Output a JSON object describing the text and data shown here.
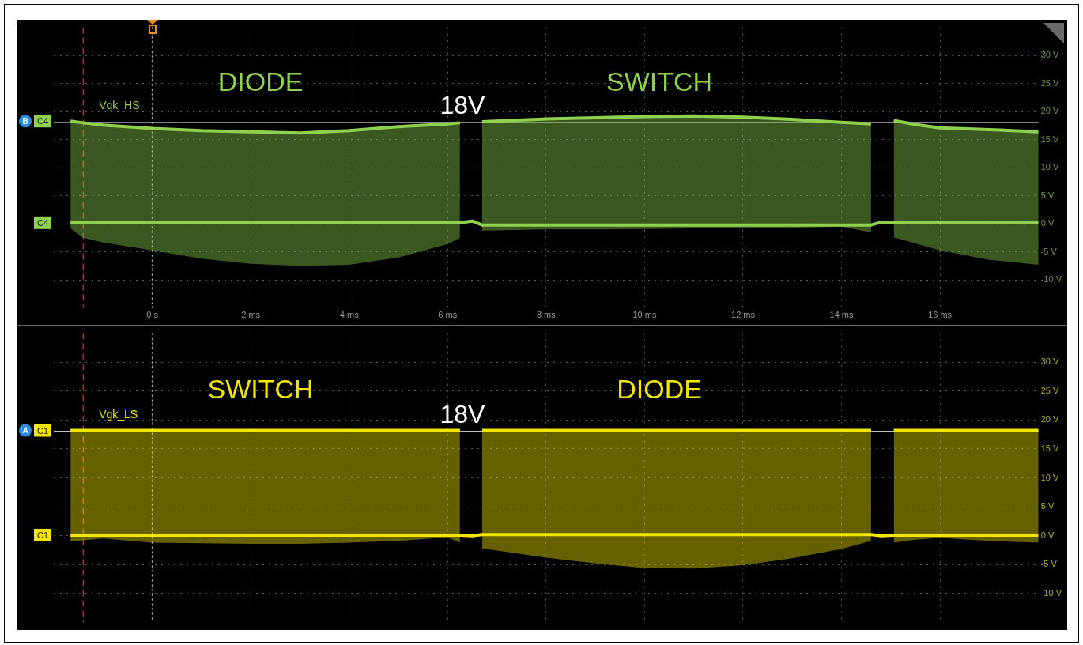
{
  "chart_data": [
    {
      "type": "line",
      "x": [
        -1.66,
        -1.4,
        -1,
        0,
        1,
        2,
        3,
        4,
        5,
        6,
        6.25,
        6.5,
        6.7,
        8,
        9,
        10,
        11,
        12,
        13,
        14,
        14.6,
        14.8,
        15.06,
        15.5,
        16,
        17,
        18
      ],
      "series": [
        {
          "name": "Vgk_HS",
          "color": "#8fd14f",
          "values": [
            18.3,
            18.0,
            17.6,
            17.0,
            16.6,
            16.4,
            16.2,
            16.6,
            17.3,
            17.8,
            18.0,
            null,
            18.2,
            18.7,
            18.9,
            19.1,
            19.2,
            19.0,
            18.6,
            18.1,
            17.8,
            null,
            18.4,
            17.7,
            17.1,
            16.8,
            16.4
          ],
          "upper": [
            18.3,
            18.0,
            17.6,
            17.0,
            16.6,
            16.4,
            16.2,
            16.6,
            17.3,
            17.8,
            18.0,
            null,
            18.2,
            18.7,
            18.9,
            19.1,
            19.2,
            19.0,
            18.6,
            18.1,
            17.8,
            null,
            18.4,
            17.7,
            17.1,
            16.8,
            16.4
          ],
          "lower": [
            -0.8,
            -2.5,
            -3.3,
            -4.7,
            -6.2,
            -7.1,
            -7.5,
            -7.3,
            -6.0,
            -3.6,
            -2.5,
            null,
            -1.2,
            -1.0,
            -1.0,
            -0.9,
            -0.8,
            -0.8,
            -0.7,
            -0.5,
            -1.5,
            null,
            -2.4,
            -3.5,
            -4.7,
            -6.4,
            -7.3
          ]
        },
        {
          "color": "#8fd14f",
          "values": [
            0.2,
            0.2,
            0.2,
            0.2,
            0.2,
            0.2,
            0.2,
            0.2,
            0.2,
            0.2,
            0.2,
            0.5,
            -0.2,
            -0.2,
            -0.2,
            -0.2,
            -0.2,
            -0.2,
            -0.2,
            -0.2,
            -0.2,
            0.3,
            0.3,
            0.3,
            0.3,
            0.3,
            0.3
          ]
        }
      ],
      "xlim": [
        -2,
        18
      ],
      "xticks": [
        {
          "value": 0,
          "label": "0 s"
        },
        {
          "value": 2,
          "label": "2 ms"
        },
        {
          "value": 4,
          "label": "4 ms"
        },
        {
          "value": 6,
          "label": "6 ms"
        },
        {
          "value": 8,
          "label": "8 ms"
        },
        {
          "value": 10,
          "label": "10 ms"
        },
        {
          "value": 12,
          "label": "12 ms"
        },
        {
          "value": 14,
          "label": "14 ms"
        },
        {
          "value": 16,
          "label": "16 ms"
        }
      ],
      "ylim": [
        -15,
        35
      ],
      "yticks": [
        {
          "value": -10,
          "label": "-10 V"
        },
        {
          "value": -5,
          "label": "-5 V"
        },
        {
          "value": 0,
          "label": "0 V"
        },
        {
          "value": 5,
          "label": "5 V"
        },
        {
          "value": 10,
          "label": "10 V"
        },
        {
          "value": 15,
          "label": "15 V"
        },
        {
          "value": 20,
          "label": "20 V"
        },
        {
          "value": 25,
          "label": "25 V"
        },
        {
          "value": 30,
          "label": "30 V"
        }
      ],
      "grid": true,
      "ref_lines": [
        {
          "axis": "y",
          "value": 18,
          "label": "18V",
          "color": "#ffffff"
        },
        {
          "axis": "x",
          "value": 0,
          "color": "#bbbbbb",
          "line_style": "dotted"
        },
        {
          "axis": "x",
          "value": -1.4,
          "color": "#cc2222",
          "line_style": "dashed"
        }
      ],
      "annotations": [
        "DIODE",
        "SWITCH",
        "B",
        "C4",
        "C4"
      ]
    },
    {
      "type": "line",
      "x": [
        -1.66,
        -1.4,
        -1,
        0,
        1,
        2,
        3,
        4,
        5,
        6,
        6.25,
        6.5,
        6.7,
        8,
        9,
        10,
        11,
        12,
        13,
        14,
        14.6,
        14.8,
        15.06,
        15.5,
        16,
        17,
        18
      ],
      "series": [
        {
          "name": "Vgk_LS",
          "color": "#f2e600",
          "values": [
            18.2,
            18.2,
            18.2,
            18.2,
            18.2,
            18.2,
            18.2,
            18.2,
            18.2,
            18.2,
            18.2,
            null,
            18.2,
            18.2,
            18.2,
            18.2,
            18.2,
            18.2,
            18.2,
            18.2,
            18.2,
            null,
            18.2,
            18.2,
            18.2,
            18.2,
            18.2
          ],
          "upper": [
            18.2,
            18.2,
            18.2,
            18.2,
            18.2,
            18.2,
            18.2,
            18.2,
            18.2,
            18.2,
            18.2,
            null,
            18.2,
            18.2,
            18.2,
            18.2,
            18.2,
            18.2,
            18.2,
            18.2,
            18.2,
            null,
            18.2,
            18.2,
            18.2,
            18.2,
            18.2
          ],
          "lower": [
            -1.0,
            -0.8,
            -0.5,
            -1.2,
            -1.3,
            -1.4,
            -1.4,
            -1.2,
            -0.9,
            -0.3,
            -1.2,
            null,
            -2.2,
            -3.8,
            -4.8,
            -5.6,
            -5.7,
            -5.1,
            -3.9,
            -2.3,
            -0.9,
            null,
            -1.2,
            -0.7,
            -0.4,
            -0.9,
            -1.2
          ]
        },
        {
          "color": "#f2e600",
          "values": [
            0.1,
            0.1,
            0.1,
            0.1,
            0.1,
            0.1,
            0.1,
            0.1,
            0.1,
            0.1,
            0.1,
            0,
            0.2,
            0.2,
            0.2,
            0.2,
            0.2,
            0.2,
            0.2,
            0.2,
            0.2,
            0,
            0.1,
            0.1,
            0.1,
            0.1,
            0.1
          ]
        }
      ],
      "xlim": [
        -2,
        18
      ],
      "ylim": [
        -15,
        35
      ],
      "yticks": [
        {
          "value": -10,
          "label": "-10 V"
        },
        {
          "value": -5,
          "label": "-5 V"
        },
        {
          "value": 0,
          "label": "0 V"
        },
        {
          "value": 5,
          "label": "5 V"
        },
        {
          "value": 10,
          "label": "10 V"
        },
        {
          "value": 15,
          "label": "15 V"
        },
        {
          "value": 20,
          "label": "20 V"
        },
        {
          "value": 25,
          "label": "25 V"
        },
        {
          "value": 30,
          "label": "30 V"
        }
      ],
      "grid": true,
      "tick_labels": "y",
      "ref_lines": [
        {
          "axis": "y",
          "value": 18,
          "label": "18V",
          "color": "#ffffff"
        },
        {
          "axis": "x",
          "value": 0,
          "color": "#bbbbbb",
          "line_style": "dotted"
        },
        {
          "axis": "x",
          "value": -1.4,
          "color": "#cc2222",
          "line_style": "dashed"
        }
      ],
      "annotations": [
        "SWITCH",
        "DIODE",
        "A",
        "C1",
        "C1"
      ]
    }
  ]
}
